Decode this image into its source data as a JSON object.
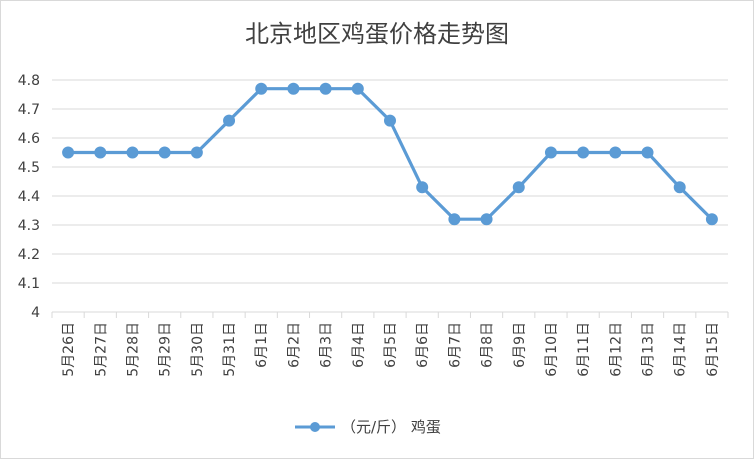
{
  "chart_data": {
    "type": "line",
    "title": "北京地区鸡蛋价格走势图",
    "categories": [
      "5月26日",
      "5月27日",
      "5月28日",
      "5月29日",
      "5月30日",
      "5月31日",
      "6月1日",
      "6月2日",
      "6月3日",
      "6月4日",
      "6月5日",
      "6月6日",
      "6月7日",
      "6月8日",
      "6月9日",
      "6月10日",
      "6月11日",
      "6月12日",
      "6月13日",
      "6月14日",
      "6月15日"
    ],
    "series": [
      {
        "name": "（元/斤） 鸡蛋",
        "values": [
          4.55,
          4.55,
          4.55,
          4.55,
          4.55,
          4.66,
          4.77,
          4.77,
          4.77,
          4.77,
          4.66,
          4.43,
          4.32,
          4.32,
          4.43,
          4.55,
          4.55,
          4.55,
          4.55,
          4.43,
          4.32
        ]
      }
    ],
    "yticks": [
      "4",
      "4.1",
      "4.2",
      "4.3",
      "4.4",
      "4.5",
      "4.6",
      "4.7",
      "4.8"
    ],
    "ylim": [
      4,
      4.8
    ],
    "grid": true,
    "legend": "bottom",
    "colors": {
      "line": "#5b9bd5",
      "grid": "#d9d9d9",
      "text": "#404040"
    }
  }
}
